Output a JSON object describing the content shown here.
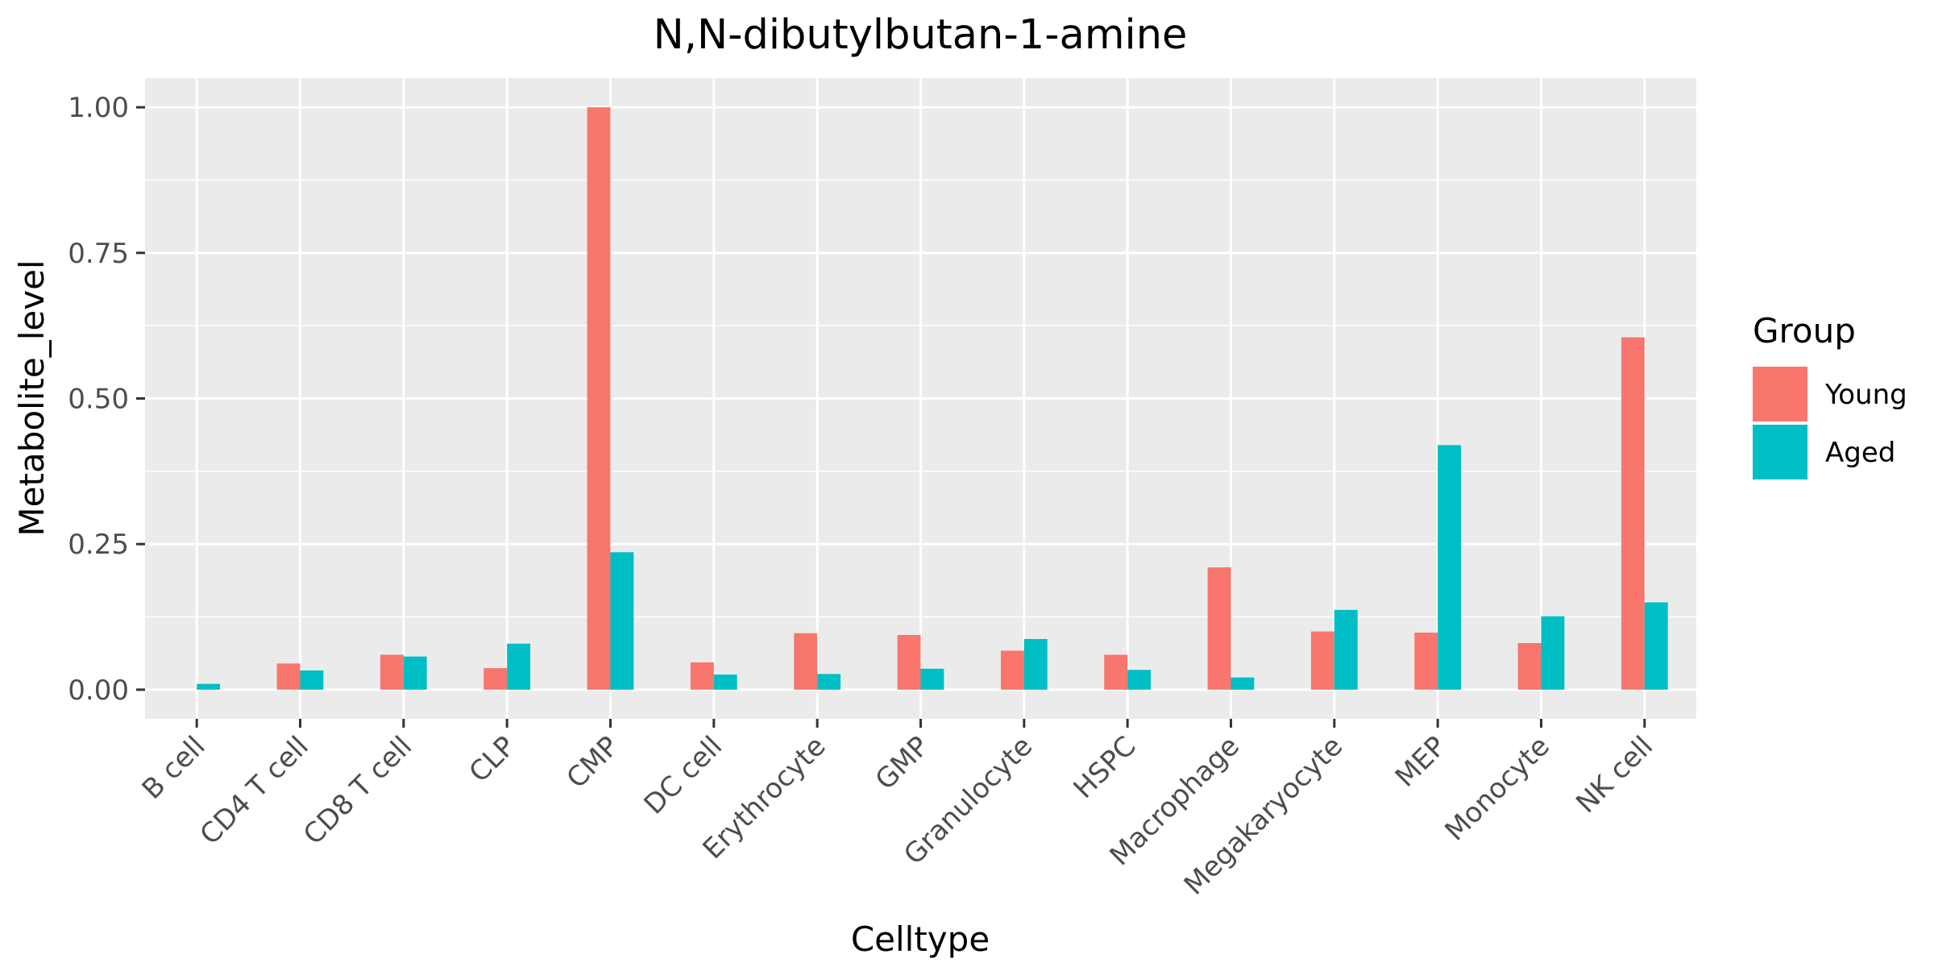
{
  "chart_data": {
    "type": "bar",
    "title": "N,N-dibutylbutan-1-amine",
    "xlabel": "Celltype",
    "ylabel": "Metabolite_level",
    "ylim": [
      -0.05,
      1.05
    ],
    "yticks": [
      0.0,
      0.25,
      0.5,
      0.75,
      1.0
    ],
    "ytick_labels": [
      "0.00",
      "0.25",
      "0.50",
      "0.75",
      "1.00"
    ],
    "grid": true,
    "legend": {
      "title": "Group",
      "position": "right"
    },
    "categories": [
      "B cell",
      "CD4 T cell",
      "CD8 T cell",
      "CLP",
      "CMP",
      "DC cell",
      "Erythrocyte",
      "GMP",
      "Granulocyte",
      "HSPC",
      "Macrophage",
      "Megakaryocyte",
      "MEP",
      "Monocyte",
      "NK cell"
    ],
    "series": [
      {
        "name": "Young",
        "color": "#F8766D",
        "values": [
          0.0,
          0.045,
          0.06,
          0.037,
          1.0,
          0.047,
          0.097,
          0.094,
          0.067,
          0.06,
          0.21,
          0.1,
          0.098,
          0.08,
          0.605
        ]
      },
      {
        "name": "Aged",
        "color": "#00BFC4",
        "values": [
          0.01,
          0.033,
          0.057,
          0.079,
          0.236,
          0.026,
          0.027,
          0.036,
          0.087,
          0.034,
          0.021,
          0.137,
          0.42,
          0.126,
          0.15
        ]
      }
    ]
  }
}
